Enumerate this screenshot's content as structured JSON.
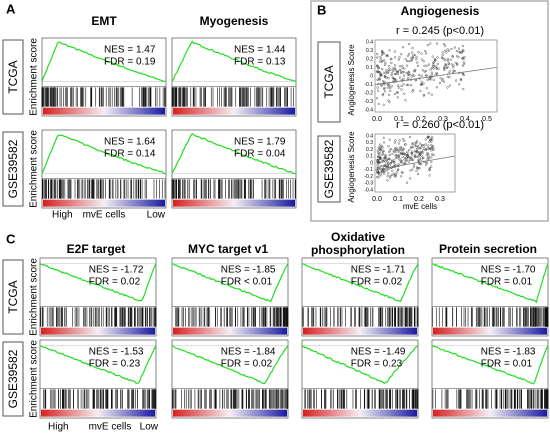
{
  "panel_a": {
    "label": "A",
    "gene_sets": [
      "EMT",
      "Myogenesis"
    ],
    "cohorts": [
      "TCGA",
      "GSE39582"
    ],
    "y_label": "Enrichment score",
    "stats": [
      [
        [
          "NES = 1.47",
          "FDR = 0.19"
        ],
        [
          "NES = 1.44",
          "FDR = 0.13"
        ]
      ],
      [
        [
          "NES = 1.64",
          "FDR = 0.14"
        ],
        [
          "NES = 1.79",
          "FDR = 0.04"
        ]
      ]
    ],
    "x_axis": [
      "High",
      "mvE cells",
      "Low"
    ]
  },
  "panel_b": {
    "label": "B",
    "title": "Angiogenesis",
    "y_label": "Angiogenesis Score",
    "x_label": "mvE cells",
    "cohorts": [
      {
        "name": "TCGA",
        "stat": "r = 0.245 (p<0.01)",
        "yticks": [
          "0.4",
          "0.3",
          "0.2",
          "0.1",
          "0",
          "-0.1",
          "-0.2",
          "-0.3",
          "-0.4"
        ],
        "xticks": [
          "0.0",
          "0.1",
          "0.2",
          "0.3",
          "0.4",
          "0.5"
        ]
      },
      {
        "name": "GSE39582",
        "stat": "r = 0.260 (p<0.01)",
        "yticks": [
          "0.4",
          "0.3",
          "0.2",
          "0.1",
          "0",
          "-0.1",
          "-0.2",
          "-0.3",
          "-0.4"
        ],
        "xticks": [
          "0.0",
          "0.1",
          "0.2",
          "0.3"
        ]
      }
    ]
  },
  "panel_c": {
    "label": "C",
    "gene_sets": [
      "E2F target",
      "MYC target v1",
      "Oxidative phosphorylation",
      "Protein secretion"
    ],
    "cohorts": [
      "TCGA",
      "GSE39582"
    ],
    "y_label": "Enrichment score",
    "stats": [
      [
        [
          "NES = -1.72",
          "FDR = 0.02"
        ],
        [
          "NES = -1.85",
          "FDR < 0.01"
        ],
        [
          "NES = -1.71",
          "FDR = 0.02"
        ],
        [
          "NES = -1.70",
          "FDR = 0.01"
        ]
      ],
      [
        [
          "NES = -1.53",
          "FDR = 0.23"
        ],
        [
          "NES = -1.84",
          "FDR = 0.02"
        ],
        [
          "NES = -1.49",
          "FDR = 0.23"
        ],
        [
          "NES = -1.83",
          "FDR = 0.01"
        ]
      ]
    ],
    "x_axis": [
      "High",
      "mvE cells",
      "Low"
    ]
  }
}
